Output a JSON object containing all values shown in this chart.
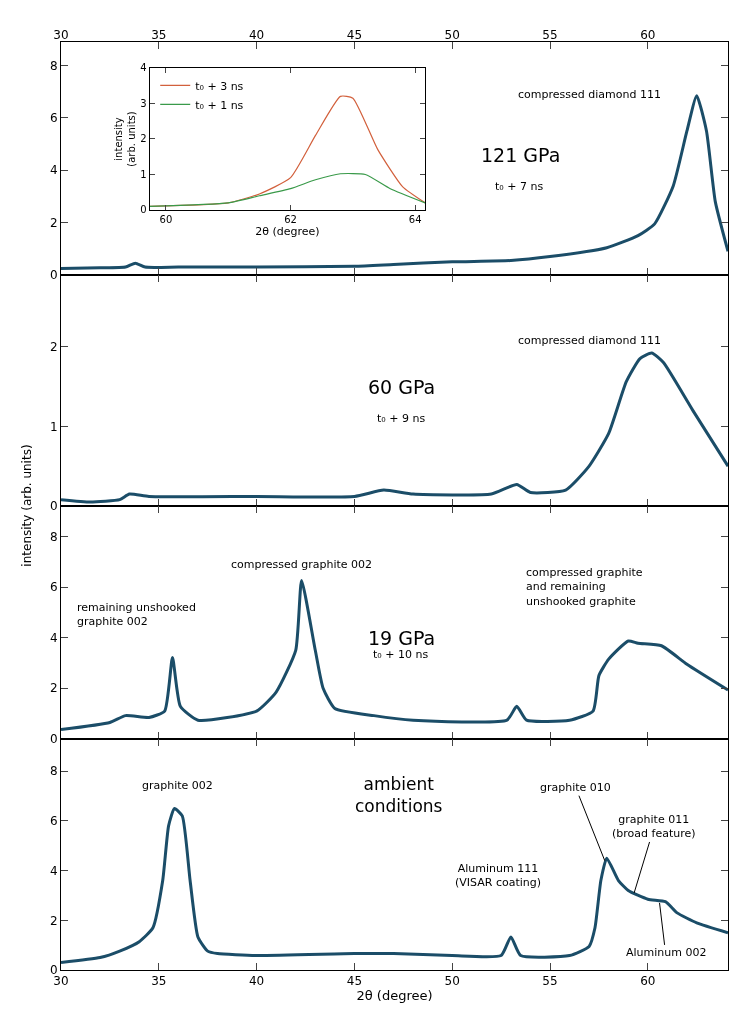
{
  "chart_data": [
    {
      "type": "line",
      "x2lim": [
        30,
        64.1
      ],
      "x2ticks": [
        30,
        35,
        40,
        45,
        50,
        55,
        60
      ],
      "xlim": [
        30,
        64.1
      ],
      "xticks": [
        30,
        35,
        40,
        45,
        50,
        55,
        60
      ],
      "ylim": [
        0,
        8.9
      ],
      "yticks": [
        0,
        2,
        4,
        6,
        8
      ],
      "tick_labels": "y",
      "legend": false,
      "series": [
        {
          "color": "#1b4d68",
          "x": [
            30,
            32,
            33.3,
            33.8,
            34.3,
            36,
            40,
            45,
            47,
            50,
            53,
            55,
            57.9,
            59.5,
            60.35,
            61.3,
            62.0,
            62.5,
            63.0,
            63.45,
            64.1
          ],
          "values": [
            0.25,
            0.27,
            0.3,
            0.45,
            0.3,
            0.3,
            0.3,
            0.33,
            0.4,
            0.5,
            0.55,
            0.7,
            1.04,
            1.5,
            1.95,
            3.4,
            5.5,
            6.85,
            5.5,
            2.8,
            0.9
          ]
        }
      ],
      "annotations": [
        "compressed diamond 111",
        "121 GPa",
        "t₀ + 7 ns"
      ]
    },
    {
      "type": "line",
      "xlim": [
        30,
        64.1
      ],
      "xticks": [
        30,
        35,
        40,
        45,
        50,
        55,
        60
      ],
      "ylim": [
        0,
        2.9
      ],
      "yticks": [
        0,
        1,
        2
      ],
      "tick_labels": "y",
      "legend": false,
      "ylabel": "intensity (arb. units)",
      "series": [
        {
          "color": "#1b4d68",
          "x": [
            30,
            31.5,
            33.0,
            33.5,
            34.5,
            40,
            45,
            46.5,
            48,
            52,
            53.3,
            54,
            55.8,
            57.0,
            58.0,
            58.9,
            59.6,
            60.2,
            60.8,
            62.3,
            64.1
          ],
          "values": [
            0.08,
            0.05,
            0.08,
            0.15,
            0.12,
            0.12,
            0.12,
            0.2,
            0.15,
            0.15,
            0.27,
            0.17,
            0.2,
            0.5,
            0.91,
            1.56,
            1.85,
            1.92,
            1.8,
            1.2,
            0.5
          ]
        }
      ],
      "annotations": [
        "compressed diamond 111",
        "60 GPa",
        "t₀ + 9 ns"
      ]
    },
    {
      "type": "line",
      "xlim": [
        30,
        64.1
      ],
      "xticks": [
        30,
        35,
        40,
        45,
        50,
        55,
        60
      ],
      "ylim": [
        0,
        9.2
      ],
      "yticks": [
        0,
        2,
        4,
        6,
        8
      ],
      "tick_labels": "y",
      "legend": false,
      "series": [
        {
          "color": "#1b4d68",
          "x": [
            30,
            32.5,
            33.3,
            34.5,
            35.3,
            35.7,
            36.1,
            37.0,
            40,
            41.0,
            42.0,
            42.3,
            43.0,
            43.4,
            44,
            46,
            48,
            52.8,
            53.3,
            53.8,
            56,
            57.2,
            57.5,
            58.0,
            59.0,
            59.5,
            60.7,
            62.0,
            64.1
          ],
          "values": [
            0.37,
            0.65,
            0.92,
            0.85,
            1.1,
            3.22,
            1.29,
            0.74,
            1.1,
            1.85,
            3.5,
            6.26,
            3.5,
            2.0,
            1.2,
            0.92,
            0.74,
            0.74,
            1.29,
            0.74,
            0.74,
            1.1,
            2.5,
            3.15,
            3.87,
            3.78,
            3.68,
            2.95,
            1.93
          ]
        }
      ],
      "annotations": [
        "compressed graphite 002",
        "remaining unshooked\ngraphite 002",
        "19 GPa",
        "t₀ + 10 ns",
        "compressed graphite\nand remaining\nunshooked graphite"
      ]
    },
    {
      "type": "line",
      "xlim": [
        30,
        64.1
      ],
      "xticks": [
        30,
        35,
        40,
        45,
        50,
        55,
        60
      ],
      "ylim": [
        0,
        9.3
      ],
      "yticks": [
        0,
        2,
        4,
        6,
        8
      ],
      "legend": false,
      "xlabel": "2θ (degree)",
      "series": [
        {
          "color": "#1b4d68",
          "x": [
            30,
            32,
            33,
            34,
            34.7,
            35.2,
            35.5,
            35.8,
            36.2,
            36.6,
            37,
            37.5,
            38,
            40,
            45,
            47,
            50,
            52.5,
            53,
            53.5,
            56,
            57,
            57.3,
            57.6,
            57.9,
            58.5,
            59,
            60,
            60.9,
            61.5,
            62.5,
            64.1
          ],
          "values": [
            0.3,
            0.5,
            0.76,
            1.14,
            1.7,
            3.6,
            5.8,
            6.5,
            6.2,
            3.6,
            1.33,
            0.76,
            0.66,
            0.58,
            0.66,
            0.66,
            0.58,
            0.58,
            1.33,
            0.58,
            0.58,
            0.95,
            1.7,
            3.6,
            4.5,
            3.6,
            3.2,
            2.85,
            2.75,
            2.3,
            1.9,
            1.5
          ]
        }
      ],
      "annotations": [
        "graphite 002",
        "ambient\nconditions",
        "Aluminum 111\n(VISAR coating)",
        {
          "text": "graphite 010",
          "x": 57.8,
          "y": 4.4
        },
        {
          "text": "graphite 011\n(broad feature)",
          "x": 59.3,
          "y": 3.1
        },
        {
          "text": "Aluminum 002",
          "x": 60.6,
          "y": 2.7
        }
      ]
    },
    {
      "type": "line",
      "xlim": [
        59.74,
        64.16
      ],
      "xticks": [
        60,
        62,
        64
      ],
      "ylim": [
        0,
        4
      ],
      "yticks": [
        0,
        1,
        2,
        3,
        4
      ],
      "legend": "top left",
      "xlabel": "2θ (degree)",
      "ylabel": "intensity\n(arb. units)",
      "series": [
        {
          "name": "t₀ + 3 ns",
          "color": "#d2603c",
          "x": [
            59.74,
            61.0,
            61.5,
            62.0,
            62.4,
            62.8,
            63.0,
            63.4,
            63.8,
            64.16
          ],
          "values": [
            0.1,
            0.2,
            0.45,
            0.91,
            2.1,
            3.2,
            3.15,
            1.7,
            0.65,
            0.2
          ]
        },
        {
          "name": "t₀ + 1 ns",
          "color": "#3a9a4a",
          "x": [
            59.74,
            61.0,
            61.5,
            62.0,
            62.4,
            62.8,
            63.2,
            63.6,
            64.16
          ],
          "values": [
            0.1,
            0.2,
            0.4,
            0.6,
            0.85,
            1.02,
            1.0,
            0.6,
            0.2
          ]
        }
      ]
    }
  ]
}
